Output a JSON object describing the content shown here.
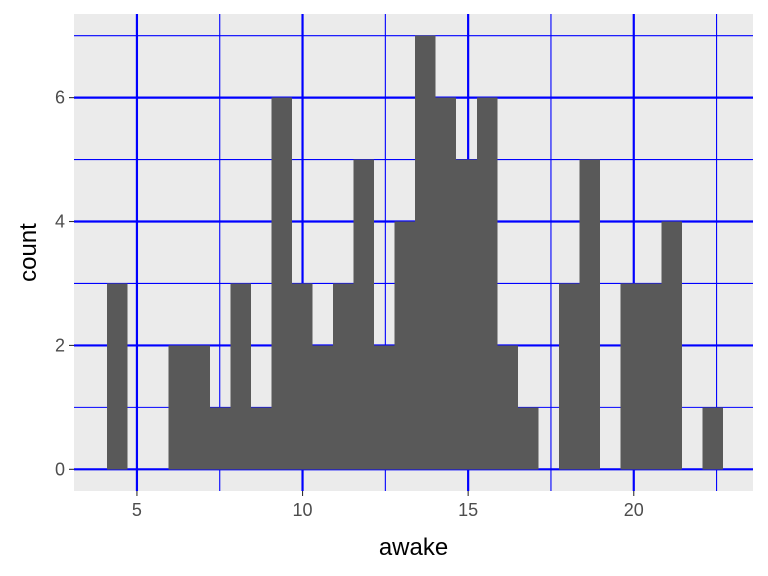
{
  "chart_data": {
    "type": "bar",
    "title": "",
    "xlabel": "awake",
    "ylabel": "count",
    "xlim": [
      3.1,
      23.6
    ],
    "ylim": [
      -0.35,
      7.35
    ],
    "x_ticks": [
      5,
      10,
      15,
      20
    ],
    "x_tick_labels": [
      "5",
      "10",
      "15",
      "20"
    ],
    "y_ticks": [
      0,
      2,
      4,
      6
    ],
    "y_tick_labels": [
      "0",
      "2",
      "4",
      "6"
    ],
    "x_minor_ticks": [
      7.5,
      12.5,
      17.5,
      22.5
    ],
    "y_minor_ticks": [
      1,
      3,
      5,
      7
    ],
    "grid": true,
    "bin_width": 0.62,
    "bins": [
      {
        "x0": 4.1,
        "x1": 4.72,
        "count": 3
      },
      {
        "x0": 4.72,
        "x1": 5.34,
        "count": 0
      },
      {
        "x0": 5.34,
        "x1": 5.96,
        "count": 0
      },
      {
        "x0": 5.96,
        "x1": 6.58,
        "count": 2
      },
      {
        "x0": 6.58,
        "x1": 7.2,
        "count": 2
      },
      {
        "x0": 7.2,
        "x1": 7.82,
        "count": 1
      },
      {
        "x0": 7.82,
        "x1": 8.44,
        "count": 3
      },
      {
        "x0": 8.44,
        "x1": 9.06,
        "count": 1
      },
      {
        "x0": 9.06,
        "x1": 9.68,
        "count": 6
      },
      {
        "x0": 9.68,
        "x1": 10.3,
        "count": 3
      },
      {
        "x0": 10.3,
        "x1": 10.92,
        "count": 2
      },
      {
        "x0": 10.92,
        "x1": 11.54,
        "count": 3
      },
      {
        "x0": 11.54,
        "x1": 12.16,
        "count": 5
      },
      {
        "x0": 12.16,
        "x1": 12.78,
        "count": 2
      },
      {
        "x0": 12.78,
        "x1": 13.4,
        "count": 4
      },
      {
        "x0": 13.4,
        "x1": 14.02,
        "count": 7
      },
      {
        "x0": 14.02,
        "x1": 14.64,
        "count": 6
      },
      {
        "x0": 14.64,
        "x1": 15.26,
        "count": 5
      },
      {
        "x0": 15.26,
        "x1": 15.88,
        "count": 6
      },
      {
        "x0": 15.88,
        "x1": 16.5,
        "count": 2
      },
      {
        "x0": 16.5,
        "x1": 17.12,
        "count": 1
      },
      {
        "x0": 17.12,
        "x1": 17.74,
        "count": 0
      },
      {
        "x0": 17.74,
        "x1": 18.36,
        "count": 3
      },
      {
        "x0": 18.36,
        "x1": 18.98,
        "count": 5
      },
      {
        "x0": 18.98,
        "x1": 19.6,
        "count": 0
      },
      {
        "x0": 19.6,
        "x1": 20.22,
        "count": 3
      },
      {
        "x0": 20.22,
        "x1": 20.84,
        "count": 3
      },
      {
        "x0": 20.84,
        "x1": 21.46,
        "count": 4
      },
      {
        "x0": 21.46,
        "x1": 22.08,
        "count": 0
      },
      {
        "x0": 22.08,
        "x1": 22.7,
        "count": 1
      }
    ]
  },
  "colors": {
    "panel_background": "#ebebeb",
    "grid": "#0000ff",
    "bar_fill": "#595959",
    "tick_text": "#4d4d4d",
    "tick_mark": "#333333",
    "axis_title": "#000000"
  }
}
